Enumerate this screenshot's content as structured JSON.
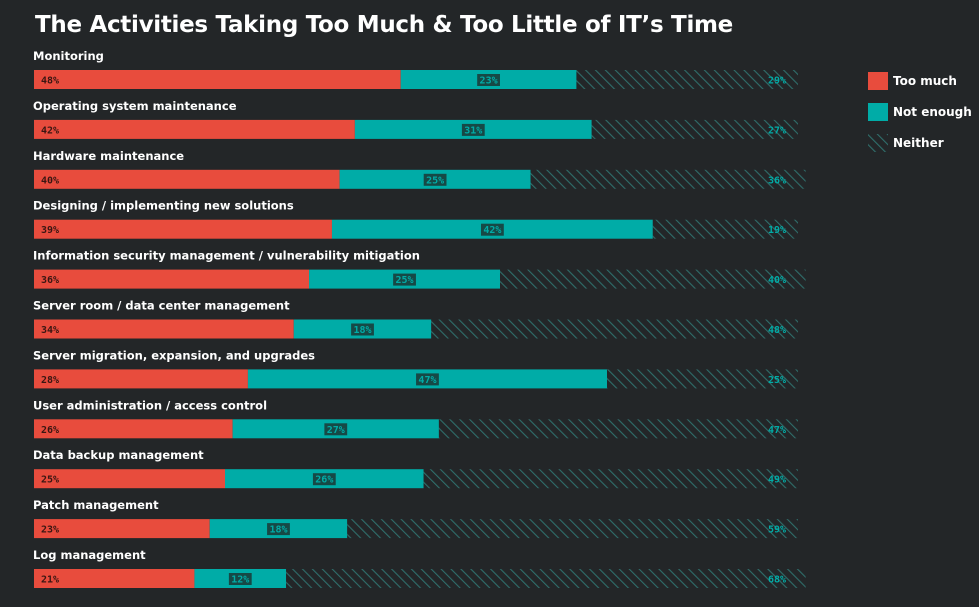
{
  "chart_data": {
    "type": "bar",
    "orientation": "horizontal",
    "stacked": true,
    "title": "The Activities Taking Too Much & Too Little of IT’s Time",
    "categories": [
      "Monitoring",
      "Operating system maintenance",
      "Hardware maintenance",
      "Designing / implementing new solutions",
      "Information security management / vulnerability mitigation",
      "Server room / data center management",
      "Server migration, expansion, and upgrades",
      "User administration / access control",
      "Data backup management",
      "Patch management",
      "Log management"
    ],
    "series": [
      {
        "name": "Too much",
        "color": "#e84c3d",
        "values": [
          48,
          42,
          40,
          39,
          36,
          34,
          28,
          26,
          25,
          23,
          21
        ]
      },
      {
        "name": "Not enough",
        "color": "#00aca7",
        "values": [
          23,
          31,
          25,
          42,
          25,
          18,
          47,
          27,
          26,
          18,
          12
        ]
      },
      {
        "name": "Neither",
        "color": "#2f6e6b",
        "pattern": "hatched",
        "values": [
          29,
          27,
          36,
          19,
          40,
          48,
          25,
          47,
          49,
          59,
          68
        ]
      }
    ],
    "value_suffix": "%",
    "xlim": [
      0,
      100
    ],
    "legend_position": "right"
  }
}
